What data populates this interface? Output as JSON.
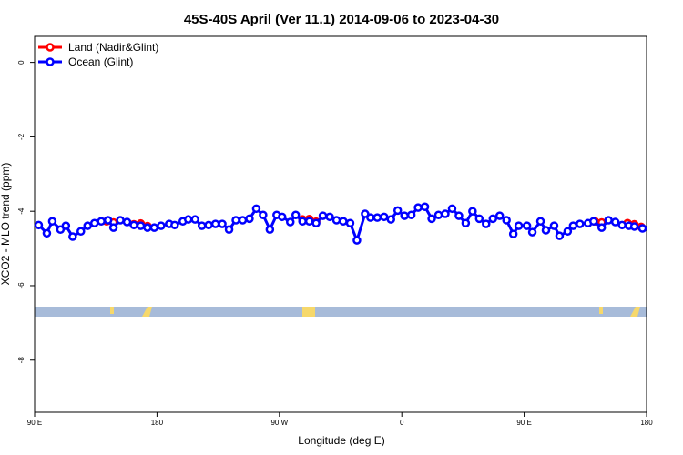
{
  "chart_data": {
    "type": "line",
    "title": "45S-40S April (Ver 11.1)   2014-09-06 to 2023-04-30",
    "xlabel": "Longitude (deg E)",
    "ylabel": "XCO2 - MLO trend (ppm)",
    "xlim": [
      90,
      540
    ],
    "ylim": [
      -9.4,
      0.7
    ],
    "xticks": [
      {
        "value": 90,
        "label": "90 E"
      },
      180,
      {
        "value": 270,
        "label": "90 W"
      },
      {
        "value": 360,
        "label": "0"
      },
      {
        "value": 450,
        "label": "90 E"
      },
      {
        "value": 540,
        "label": "180"
      }
    ],
    "yticks": [
      0,
      -2,
      -4,
      -6,
      -8
    ],
    "legend": "top-left",
    "series": [
      {
        "name": "Land (Nadir&Glint)",
        "color": "#ff0000",
        "x": [
          143,
          148,
          155,
          163,
          168,
          173,
          230,
          287,
          292,
          297,
          400,
          502,
          507,
          520,
          526,
          531,
          536
        ],
        "values": [
          -4.27,
          -4.3,
          null,
          -4.35,
          -4.33,
          -4.4,
          null,
          -4.22,
          -4.21,
          -4.28,
          null,
          -4.27,
          -4.3,
          null,
          -4.32,
          -4.35,
          -4.42
        ]
      },
      {
        "name": "Ocean (Glint)",
        "color": "#0000ff",
        "x": [
          93,
          99,
          103,
          109,
          113,
          118,
          124,
          129,
          134,
          139,
          144,
          148,
          153,
          158,
          163,
          168,
          173,
          178,
          183,
          189,
          193,
          199,
          203,
          208,
          213,
          218,
          223,
          228,
          233,
          238,
          243,
          248,
          253,
          258,
          263,
          268,
          272,
          278,
          282,
          287,
          292,
          297,
          302,
          307,
          312,
          317,
          322,
          327,
          333,
          337,
          342,
          347,
          352,
          357,
          362,
          367,
          372,
          377,
          382,
          387,
          392,
          397,
          402,
          407,
          412,
          417,
          422,
          427,
          432,
          437,
          442,
          446,
          452,
          456,
          462,
          466,
          472,
          476,
          482,
          486,
          491,
          497,
          501,
          507,
          512,
          517,
          522,
          527,
          531,
          537
        ],
        "values": [
          -4.37,
          -4.59,
          -4.27,
          -4.49,
          -4.39,
          -4.68,
          -4.54,
          -4.39,
          -4.32,
          -4.27,
          -4.24,
          -4.44,
          -4.24,
          -4.29,
          -4.37,
          -4.39,
          -4.44,
          -4.44,
          -4.39,
          -4.34,
          -4.37,
          -4.27,
          -4.22,
          -4.22,
          -4.39,
          -4.37,
          -4.34,
          -4.34,
          -4.49,
          -4.24,
          -4.24,
          -4.2,
          -3.93,
          -4.1,
          -4.49,
          -4.1,
          -4.15,
          -4.29,
          -4.1,
          -4.27,
          -4.27,
          -4.32,
          -4.12,
          -4.15,
          -4.24,
          -4.27,
          -4.32,
          -4.78,
          -4.07,
          -4.17,
          -4.17,
          -4.15,
          -4.22,
          -3.98,
          -4.12,
          -4.1,
          -3.9,
          -3.88,
          -4.2,
          -4.1,
          -4.07,
          -3.93,
          -4.12,
          -4.32,
          -4.0,
          -4.2,
          -4.34,
          -4.2,
          -4.12,
          -4.24,
          -4.61,
          -4.39,
          -4.39,
          -4.56,
          -4.27,
          -4.51,
          -4.39,
          -4.66,
          -4.54,
          -4.39,
          -4.34,
          -4.32,
          -4.27,
          -4.44,
          -4.24,
          -4.29,
          -4.37,
          -4.39,
          -4.41,
          -4.46
        ]
      }
    ]
  }
}
